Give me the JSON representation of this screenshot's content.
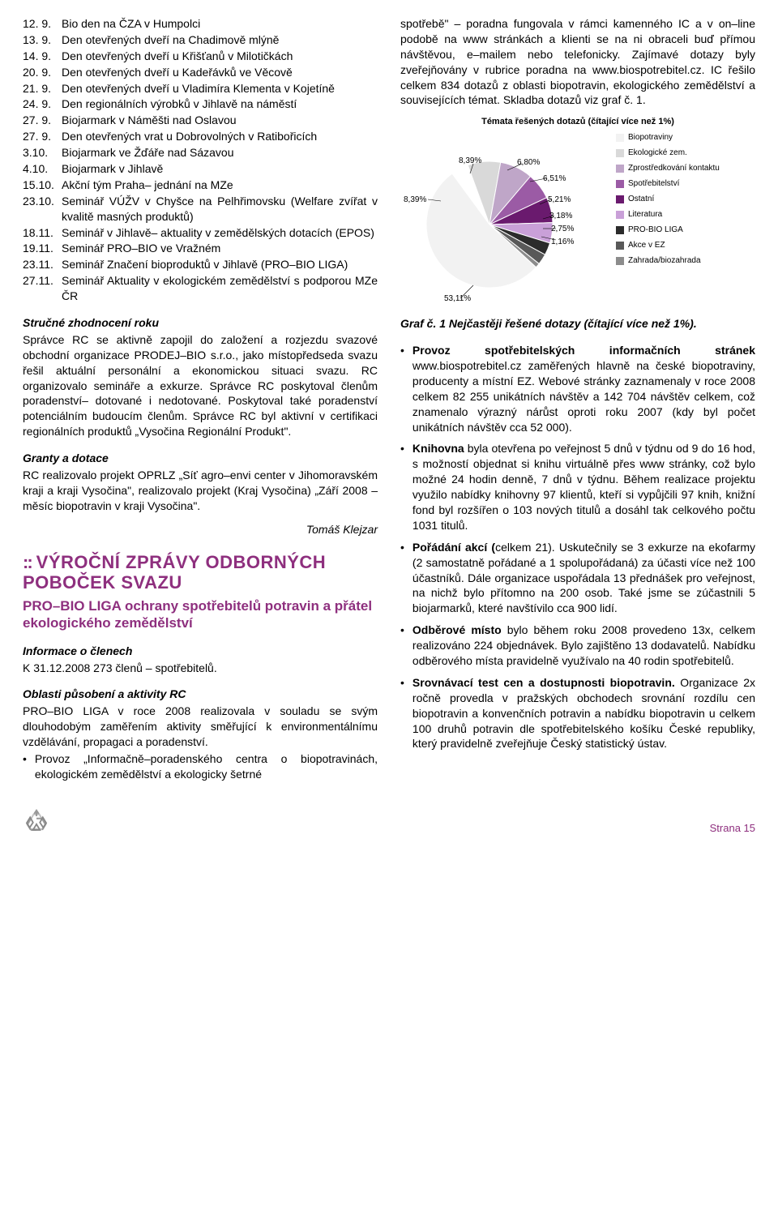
{
  "leftCol": {
    "events": [
      {
        "date": "12.  9.",
        "text": "Bio den na ČZA v Humpolci"
      },
      {
        "date": "13.  9.",
        "text": "Den otevřených dveří na Chadimově mlýně"
      },
      {
        "date": "14.  9.",
        "text": "Den otevřených dveří u Křišťanů v Milotičkách"
      },
      {
        "date": "20.  9.",
        "text": "Den otevřených dveří u Kadeřávků ve Věcově"
      },
      {
        "date": "21.  9.",
        "text": "Den otevřených dveří u Vladimíra Klementa v Kojetíně"
      },
      {
        "date": "24.  9.",
        "text": "Den regionálních výrobků v Jihlavě na náměstí"
      },
      {
        "date": "27.  9.",
        "text": "Biojarmark v Náměšti nad Oslavou"
      },
      {
        "date": "27.  9.",
        "text": "Den otevřených vrat u Dobrovolných v Ratibořicích"
      },
      {
        "date": "  3.10.",
        "text": "Biojarmark ve Žďáře nad Sázavou"
      },
      {
        "date": "  4.10.",
        "text": "Biojarmark v Jihlavě"
      },
      {
        "date": "15.10.",
        "text": "Akční tým Praha– jednání na MZe"
      },
      {
        "date": "23.10.",
        "text": "Seminář VÚŽV v Chyšce na Pelhřimovsku (Welfare zvířat v kvalitě masných produktů)"
      },
      {
        "date": "18.11.",
        "text": "Seminář v Jihlavě– aktuality v zemědělských dotacích (EPOS)"
      },
      {
        "date": "19.11.",
        "text": "Seminář PRO–BIO ve Vražném"
      },
      {
        "date": "23.11.",
        "text": "Seminář Značení bioproduktů v Jihlavě (PRO–BIO LIGA)"
      },
      {
        "date": "27.11.",
        "text": "Seminář Aktuality v ekologickém zemědělství s podporou MZe ČR"
      }
    ],
    "summaryHead": "Stručné zhodnocení roku",
    "summary": "Správce RC se aktivně zapojil do založení a rozjezdu svazové obchodní organizace PRODEJ–BIO s.r.o., jako místopředseda svazu řešil aktuální personální a ekonomickou situaci svazu. RC organizovalo semináře a exkurze. Správce RC poskytoval členům poradenství– dotované i nedotované. Poskytoval také poradenství potenciálním budoucím členům. Správce RC byl aktivní v certifikaci regionálních produktů „Vysočina Regionální Produkt\".",
    "grantsHead": "Granty a dotace",
    "grants": "RC realizovalo projekt OPRLZ „Síť agro–envi center v Jihomoravském kraji a kraji Vysočina\", realizovalo projekt (Kraj Vysočina) „Září 2008 – měsíc biopotravin v kraji Vysočina\".",
    "author": "Tomáš Klejzar",
    "sectionTitle": "VÝROČNÍ ZPRÁVY ODBORNÝCH POBOČEK SVAZU",
    "sectionSub": "PRO–BIO LIGA ochrany spotřebitelů potravin a přátel ekologického zemědělství",
    "infoHead": "Informace o členech",
    "info": "K 31.12.2008 273 členů – spotřebitelů.",
    "areasHead": "Oblasti působení a aktivity RC",
    "areasIntro": "PRO–BIO LIGA v roce 2008 realizovala v souladu se svým dlouhodobým zaměřením aktivity směřující k environmentálnímu vzdělávání, propagaci a poradenství.",
    "bullet1": "Provoz „Informačně–poradenského centra o biopotravinách, ekologickém zemědělství a ekologicky šetrné"
  },
  "rightCol": {
    "topPara": "spotřebě\" – poradna fungovala v rámci kamenného IC a v on–line podobě na www stránkách a klienti se na ni obraceli buď přímou návštěvou, e–mailem nebo telefonicky. Zajímavé dotazy byly zveřejňovány v rubrice poradna na www.biospotrebitel.cz. IC řešilo celkem 834 dotazů z oblasti biopotravin, ekologického zemědělství a souvisejících témat. Skladba dotazů viz graf č. 1.",
    "chart": {
      "title": "Témata řešených dotazů (čítající více než 1%)",
      "slices": [
        {
          "label": "Biopotraviny",
          "value": 53.11,
          "color": "#f2f2f2"
        },
        {
          "label": "Ekologické zem.",
          "value": 8.39,
          "color": "#d9d9d9"
        },
        {
          "label": "Zprostředkování kontaktu",
          "value": 8.39,
          "color": "#bfa6c8"
        },
        {
          "label": "Spotřebitelství",
          "value": 6.8,
          "color": "#9b5ba5"
        },
        {
          "label": "Ostatní",
          "value": 6.51,
          "color": "#6a1a6e"
        },
        {
          "label": "Literatura",
          "value": 5.21,
          "color": "#c9a0d8"
        },
        {
          "label": "PRO-BIO LIGA",
          "value": 3.18,
          "color": "#2b2b2b"
        },
        {
          "label": "Akce v EZ",
          "value": 2.75,
          "color": "#595959"
        },
        {
          "label": "Zahrada/biozahrada",
          "value": 1.16,
          "color": "#8c8c8c"
        }
      ],
      "labels": [
        "8,39%",
        "8,39%",
        "6,80%",
        "6,51%",
        "5,21%",
        "3,18%",
        "2,75%",
        "1,16%",
        "53,11%"
      ],
      "legend": [
        {
          "color": "#f2f2f2",
          "text": "Biopotraviny"
        },
        {
          "color": "#d9d9d9",
          "text": "Ekologické zem."
        },
        {
          "color": "#bfa6c8",
          "text": "Zprostředkování kontaktu"
        },
        {
          "color": "#9b5ba5",
          "text": "Spotřebitelství"
        },
        {
          "color": "#6a1a6e",
          "text": "Ostatní"
        },
        {
          "color": "#c9a0d8",
          "text": "Literatura"
        },
        {
          "color": "#2b2b2b",
          "text": "PRO-BIO LIGA"
        },
        {
          "color": "#595959",
          "text": "Akce v EZ"
        },
        {
          "color": "#8c8c8c",
          "text": "Zahrada/biozahrada"
        }
      ]
    },
    "caption": "Graf č. 1 Nejčastěji řešené dotazy (čítající více než 1%).",
    "bullets": [
      "<b>Provoz spotřebitelských informačních stránek</b> www.biospotrebitel.cz zaměřených hlavně na české biopotraviny, producenty a místní EZ. Webové stránky zaznamenaly v roce 2008 celkem 82 255 unikátních návštěv a 142 704 návštěv celkem, což znamenalo výrazný nárůst oproti roku 2007 (kdy byl počet unikátních návštěv cca 52 000).",
      "<b>Knihovna</b> byla otevřena po veřejnost 5 dnů v týdnu od 9 do 16 hod, s možností objednat si knihu virtuálně přes www stránky, což bylo možné 24 hodin denně, 7 dnů v týdnu. Během realizace projektu využilo nabídky knihovny 97 klientů, kteří si vypůjčili 97 knih, knižní fond byl rozšířen o 103 nových titulů a dosáhl tak celkového počtu 1031 titulů.",
      "<b>Pořádání akcí (</b>celkem 21). Uskutečnily se 3 exkurze na ekofarmy (2 samostatně pořádané a 1 spolupořádaná) za účasti více než 100 účastníků. Dále organizace uspořádala 13 přednášek pro veřejnost, na nichž bylo přítomno na 200 osob. Také jsme se zúčastnili 5 biojarmarků, které navštívilo cca 900 lidí.",
      "<b>Odběrové místo</b> bylo během roku 2008 provedeno 13x, celkem realizováno 224 objednávek. Bylo zajištěno 13 dodavatelů. Nabídku odběrového místa pravidelně využívalo na 40 rodin spotřebitelů.",
      "<b>Srovnávací test cen a dostupnosti biopotravin.</b> Organizace 2x ročně provedla v pražských obchodech srovnání rozdílu cen biopotravin a konvenčních potravin a nabídku biopotravin u celkem 100 druhů potravin dle spotřebitelského košíku České republiky, který pravidelně zveřejňuje Český statistický ústav."
    ]
  },
  "pageNum": "Strana 15"
}
